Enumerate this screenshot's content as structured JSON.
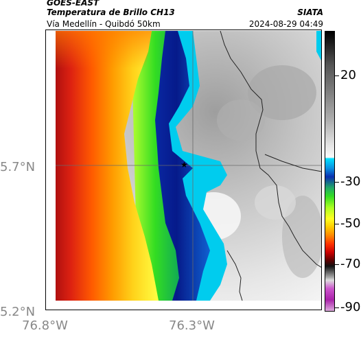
{
  "header": {
    "satellite": "GOES-EAST",
    "product": "Temperatura de Brillo CH13",
    "subtitle": "Vía Medellín - Quibdó 50km",
    "org": "SIATA",
    "timestamp": "2024-08-29 04:49"
  },
  "map": {
    "lat_labels": [
      "5.7°N",
      "5.2°N"
    ],
    "lon_labels": [
      "76.8°W",
      "76.3°W"
    ],
    "marker_icon": "star-icon",
    "colors": {
      "warm_red": "#cc1111",
      "orange": "#ff8a00",
      "yellow": "#ffff33",
      "green": "#22cc22",
      "cyan": "#00d8f0",
      "deep_blue": "#061a8a",
      "cloud_white": "#f0f0f0",
      "cloud_grey": "#b8b8b8",
      "coastline": "#222222"
    }
  },
  "colorbar": {
    "ticks": [
      "20",
      "-30",
      "-50",
      "-70",
      "-90"
    ]
  }
}
